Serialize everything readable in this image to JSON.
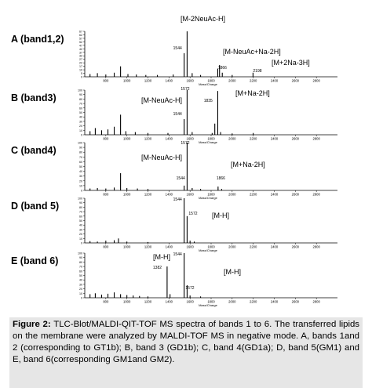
{
  "figure": {
    "caption_label": "Figure 2:",
    "caption_text": " TLC-Blot/MALDI-QIT-TOF MS spectra of bands 1 to 6. The transferred lipids on the membrane were analyzed by MALDI-TOF MS in negative mode. A, bands 1and 2 (corresponding to GT1b); B, band 3 (GD1b); C, band 4(GD1a); D, band 5(GM1) and E, band 6(corresponding GM1and GM2)."
  },
  "chart_data": [
    {
      "type": "line",
      "panel_label": "A (band1,2)",
      "xlim": [
        600,
        3000
      ],
      "x_ticks": [
        800,
        1000,
        1200,
        1400,
        1600,
        1800,
        2000,
        2200,
        2400,
        2600,
        2800
      ],
      "xlabel": "Mass/Charge",
      "ylim": [
        0,
        100
      ],
      "y_ticks": [
        0,
        5,
        10,
        17,
        22,
        27,
        32,
        37,
        42,
        47,
        52,
        57,
        62,
        67
      ],
      "peaks": [
        {
          "x": 650,
          "y": 6
        },
        {
          "x": 720,
          "y": 8
        },
        {
          "x": 800,
          "y": 5
        },
        {
          "x": 880,
          "y": 9
        },
        {
          "x": 940,
          "y": 23
        },
        {
          "x": 1010,
          "y": 6
        },
        {
          "x": 1090,
          "y": 5
        },
        {
          "x": 1180,
          "y": 4
        },
        {
          "x": 1290,
          "y": 4
        },
        {
          "x": 1440,
          "y": 5
        },
        {
          "x": 1544,
          "y": 52
        },
        {
          "x": 1572,
          "y": 100
        },
        {
          "x": 1620,
          "y": 8
        },
        {
          "x": 1700,
          "y": 4
        },
        {
          "x": 1863,
          "y": 18
        },
        {
          "x": 1880,
          "y": 26
        },
        {
          "x": 1906,
          "y": 9
        },
        {
          "x": 2000,
          "y": 4
        },
        {
          "x": 2198,
          "y": 9
        }
      ],
      "peak_labels": [
        {
          "x": 1544,
          "text": "1544"
        },
        {
          "x": 1866,
          "text": "1866"
        },
        {
          "x": 2198,
          "text": "2198"
        }
      ],
      "annotations": [
        "[M-2NeuAc-H]",
        "[M-NeuAc+Na-2H]",
        "[M+2Na-3H]"
      ]
    },
    {
      "type": "line",
      "panel_label": "B (band3)",
      "xlim": [
        600,
        3000
      ],
      "x_ticks": [
        800,
        1000,
        1200,
        1400,
        1600,
        1800,
        2000,
        2200,
        2400,
        2600,
        2800
      ],
      "xlabel": "Mass/Charge",
      "ylim": [
        0,
        100
      ],
      "y_ticks": [
        0,
        10,
        20,
        30,
        40,
        50,
        60,
        70,
        80,
        90,
        100
      ],
      "peaks": [
        {
          "x": 650,
          "y": 8
        },
        {
          "x": 700,
          "y": 15
        },
        {
          "x": 760,
          "y": 10
        },
        {
          "x": 820,
          "y": 12
        },
        {
          "x": 880,
          "y": 18
        },
        {
          "x": 940,
          "y": 45
        },
        {
          "x": 990,
          "y": 8
        },
        {
          "x": 1080,
          "y": 6
        },
        {
          "x": 1200,
          "y": 4
        },
        {
          "x": 1390,
          "y": 4
        },
        {
          "x": 1544,
          "y": 35
        },
        {
          "x": 1572,
          "y": 100
        },
        {
          "x": 1620,
          "y": 6
        },
        {
          "x": 1810,
          "y": 4
        },
        {
          "x": 1835,
          "y": 25
        },
        {
          "x": 1863,
          "y": 98
        },
        {
          "x": 1890,
          "y": 6
        },
        {
          "x": 2000,
          "y": 3
        },
        {
          "x": 2200,
          "y": 4
        }
      ],
      "peak_labels": [
        {
          "x": 1572,
          "text": "1572"
        },
        {
          "x": 1544,
          "text": "1544"
        },
        {
          "x": 1835,
          "text": "1835"
        }
      ],
      "annotations": [
        "[M-NeuAc-H]",
        "[M+Na-2H]"
      ]
    },
    {
      "type": "line",
      "panel_label": "C (band4)",
      "xlim": [
        600,
        3000
      ],
      "x_ticks": [
        800,
        1000,
        1200,
        1400,
        1600,
        1800,
        2000,
        2200,
        2400,
        2600,
        2800
      ],
      "xlabel": "Mass/Charge",
      "ylim": [
        0,
        100
      ],
      "y_ticks": [
        0,
        10,
        20,
        30,
        40,
        50,
        60,
        70,
        80,
        90,
        100
      ],
      "peaks": [
        {
          "x": 650,
          "y": 4
        },
        {
          "x": 720,
          "y": 5
        },
        {
          "x": 800,
          "y": 4
        },
        {
          "x": 880,
          "y": 6
        },
        {
          "x": 940,
          "y": 36
        },
        {
          "x": 1000,
          "y": 5
        },
        {
          "x": 1100,
          "y": 4
        },
        {
          "x": 1200,
          "y": 3
        },
        {
          "x": 1544,
          "y": 10
        },
        {
          "x": 1572,
          "y": 100
        },
        {
          "x": 1620,
          "y": 5
        },
        {
          "x": 1700,
          "y": 3
        },
        {
          "x": 1866,
          "y": 8
        },
        {
          "x": 1900,
          "y": 3
        }
      ],
      "peak_labels": [
        {
          "x": 1572,
          "text": "1572"
        },
        {
          "x": 1544,
          "text": "1544"
        },
        {
          "x": 1866,
          "text": "1866"
        }
      ],
      "annotations": [
        "[M-NeuAc-H]",
        "[M+Na-2H]"
      ]
    },
    {
      "type": "line",
      "panel_label": "D (band 5)",
      "xlim": [
        600,
        3000
      ],
      "x_ticks": [
        800,
        1000,
        1200,
        1400,
        1600,
        1800,
        2000,
        2200,
        2400,
        2600,
        2800
      ],
      "xlabel": "Mass/Charge",
      "ylim": [
        0,
        100
      ],
      "y_ticks": [
        0,
        10,
        20,
        30,
        40,
        50,
        60,
        70,
        80,
        90,
        100
      ],
      "peaks": [
        {
          "x": 650,
          "y": 4
        },
        {
          "x": 720,
          "y": 3
        },
        {
          "x": 800,
          "y": 5
        },
        {
          "x": 880,
          "y": 6
        },
        {
          "x": 920,
          "y": 10
        },
        {
          "x": 1000,
          "y": 3
        },
        {
          "x": 1200,
          "y": 2
        },
        {
          "x": 1544,
          "y": 100
        },
        {
          "x": 1572,
          "y": 60
        },
        {
          "x": 1600,
          "y": 5
        },
        {
          "x": 1640,
          "y": 3
        }
      ],
      "peak_labels": [
        {
          "x": 1544,
          "text": "1544"
        },
        {
          "x": 1572,
          "text": "1572"
        }
      ],
      "annotations": [
        "[M-H]"
      ]
    },
    {
      "type": "line",
      "panel_label": "E (band 6)",
      "xlim": [
        600,
        3000
      ],
      "x_ticks": [
        800,
        1000,
        1200,
        1400,
        1600,
        1800,
        2000,
        2200,
        2400,
        2600,
        2800
      ],
      "xlabel": "Mass/Charge",
      "ylim": [
        0,
        100
      ],
      "y_ticks": [
        0,
        10,
        20,
        30,
        40,
        50,
        60,
        70,
        80,
        90,
        100
      ],
      "peaks": [
        {
          "x": 650,
          "y": 8
        },
        {
          "x": 700,
          "y": 10
        },
        {
          "x": 760,
          "y": 7
        },
        {
          "x": 820,
          "y": 9
        },
        {
          "x": 880,
          "y": 12
        },
        {
          "x": 940,
          "y": 8
        },
        {
          "x": 1000,
          "y": 6
        },
        {
          "x": 1060,
          "y": 5
        },
        {
          "x": 1120,
          "y": 4
        },
        {
          "x": 1200,
          "y": 3
        },
        {
          "x": 1382,
          "y": 70
        },
        {
          "x": 1410,
          "y": 8
        },
        {
          "x": 1544,
          "y": 100
        },
        {
          "x": 1572,
          "y": 28
        },
        {
          "x": 1600,
          "y": 5
        },
        {
          "x": 1700,
          "y": 3
        }
      ],
      "peak_labels": [
        {
          "x": 1544,
          "text": "1544"
        },
        {
          "x": 1382,
          "text": "1382"
        },
        {
          "x": 1572,
          "text": "1572"
        }
      ],
      "annotations": [
        "[M-H]",
        "[M-H]"
      ]
    }
  ]
}
